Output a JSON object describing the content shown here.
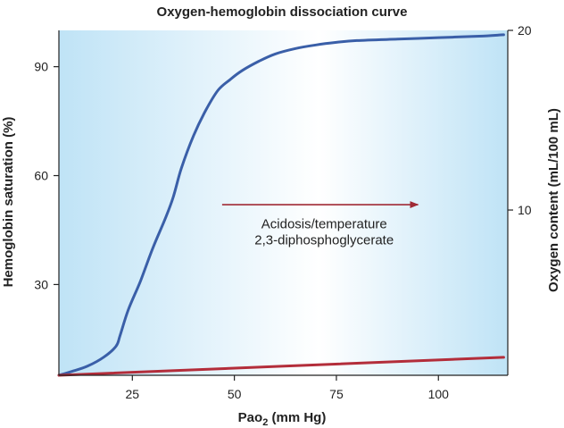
{
  "chart_data": {
    "type": "line",
    "title": "Oxygen-hemoglobin dissociation curve",
    "xlabel_main": "Pao",
    "xlabel_sub": "2",
    "xlabel_rest": " (mm Hg)",
    "ylabel": "Hemoglobin saturation (%)",
    "y2label": "Oxygen content (mL/100 mL)",
    "xlim": [
      7,
      117
    ],
    "ylim": [
      5,
      100
    ],
    "y2lim": [
      0.8,
      20
    ],
    "x_ticks": [
      25,
      50,
      75,
      100
    ],
    "y_ticks": [
      30,
      60,
      90
    ],
    "y2_ticks": [
      10,
      20
    ],
    "grid": false,
    "background_gradient": [
      "#bfe3f6",
      "#ffffff",
      "#bfe3f6"
    ],
    "annotation": {
      "line1": "Acidosis/temperature",
      "line2": "2,3-diphosphoglycerate",
      "arrow_from": [
        47,
        52
      ],
      "arrow_to": [
        95,
        52
      ],
      "text_x": 72,
      "text_y1": 45.5,
      "text_y2": 41
    },
    "series": [
      {
        "color": "#3a5fa8",
        "axis": "left",
        "x": [
          7,
          10,
          14,
          18,
          21,
          22,
          24,
          27,
          30,
          33,
          35,
          37,
          40,
          43,
          46,
          49,
          52,
          56,
          60,
          65,
          70,
          75,
          80,
          90,
          100,
          110,
          116
        ],
        "y": [
          5,
          6,
          7.5,
          10,
          13,
          16,
          23,
          31,
          40,
          48,
          54,
          62,
          71,
          78,
          83.5,
          86.5,
          89,
          91.5,
          93.5,
          95,
          96,
          96.7,
          97.2,
          97.6,
          98,
          98.4,
          98.8
        ]
      },
      {
        "color": "#b32d3a",
        "axis": "right",
        "x": [
          7,
          116
        ],
        "y": [
          0.8,
          1.8
        ]
      }
    ]
  }
}
